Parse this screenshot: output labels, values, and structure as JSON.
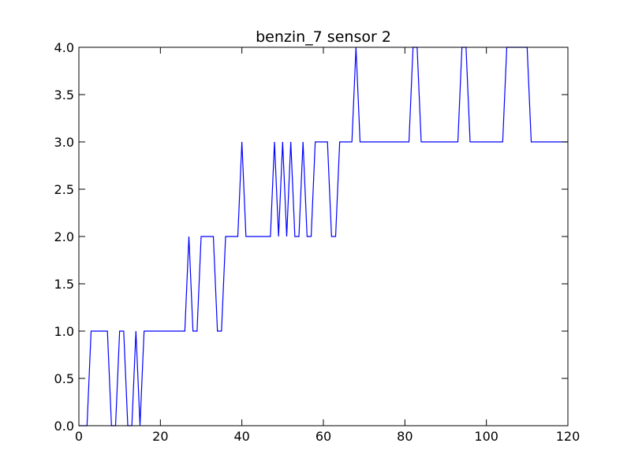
{
  "chart_data": {
    "type": "line",
    "title": "benzin_7 sensor 2",
    "xlabel": "",
    "ylabel": "",
    "xlim": [
      0,
      120
    ],
    "ylim": [
      0.0,
      4.0
    ],
    "x_ticks": [
      0,
      20,
      40,
      60,
      80,
      100,
      120
    ],
    "x_tick_labels": [
      "0",
      "20",
      "40",
      "60",
      "80",
      "100",
      "120"
    ],
    "y_ticks": [
      0.0,
      0.5,
      1.0,
      1.5,
      2.0,
      2.5,
      3.0,
      3.5,
      4.0
    ],
    "y_tick_labels": [
      "0.0",
      "0.5",
      "1.0",
      "1.5",
      "2.0",
      "2.5",
      "3.0",
      "3.5",
      "4.0"
    ],
    "grid": false,
    "line_color": "#0000ff",
    "series": [
      {
        "x": [
          0,
          1,
          2,
          3,
          4,
          5,
          6,
          7,
          8,
          9,
          10,
          11,
          12,
          13,
          14,
          15,
          16,
          17,
          18,
          19,
          20,
          21,
          22,
          23,
          24,
          25,
          26,
          27,
          28,
          29,
          30,
          31,
          32,
          33,
          34,
          35,
          36,
          37,
          38,
          39,
          40,
          41,
          42,
          43,
          44,
          45,
          46,
          47,
          48,
          49,
          50,
          51,
          52,
          53,
          54,
          55,
          56,
          57,
          58,
          59,
          60,
          61,
          62,
          63,
          64,
          65,
          66,
          67,
          68,
          69,
          70,
          71,
          72,
          73,
          74,
          75,
          76,
          77,
          78,
          79,
          80,
          81,
          82,
          83,
          84,
          85,
          86,
          87,
          88,
          89,
          90,
          91,
          92,
          93,
          94,
          95,
          96,
          97,
          98,
          99,
          100,
          101,
          102,
          103,
          104,
          105,
          106,
          107,
          108,
          109,
          110,
          111,
          112,
          113,
          114,
          115,
          116,
          117,
          118,
          119,
          120
        ],
        "values": [
          0,
          0,
          0,
          1,
          1,
          1,
          1,
          1,
          0,
          0,
          1,
          1,
          0,
          0,
          1,
          0,
          1,
          1,
          1,
          1,
          1,
          1,
          1,
          1,
          1,
          1,
          1,
          2,
          1,
          1,
          2,
          2,
          2,
          2,
          1,
          1,
          2,
          2,
          2,
          2,
          3,
          2,
          2,
          2,
          2,
          2,
          2,
          2,
          3,
          2,
          3,
          2,
          3,
          2,
          2,
          3,
          2,
          2,
          3,
          3,
          3,
          3,
          2,
          2,
          3,
          3,
          3,
          3,
          4,
          3,
          3,
          3,
          3,
          3,
          3,
          3,
          3,
          3,
          3,
          3,
          3,
          3,
          4,
          4,
          3,
          3,
          3,
          3,
          3,
          3,
          3,
          3,
          3,
          3,
          4,
          4,
          3,
          3,
          3,
          3,
          3,
          3,
          3,
          3,
          3,
          4,
          4,
          4,
          4,
          4,
          4,
          3,
          3,
          3,
          3,
          3,
          3,
          3,
          3,
          3,
          3
        ]
      }
    ]
  }
}
